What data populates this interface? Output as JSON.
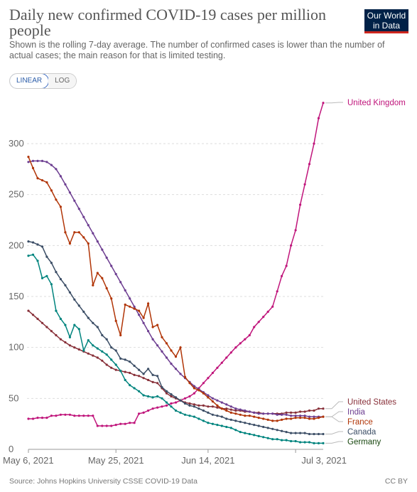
{
  "header": {
    "title": "Daily new confirmed COVID-19 cases per million people",
    "subtitle": "Shown is the rolling 7-day average. The number of confirmed cases is lower than the number of actual cases; the main reason for that is limited testing.",
    "logo_line1": "Our World",
    "logo_line2": "in Data"
  },
  "controls": {
    "linear_label": "LINEAR",
    "log_label": "LOG"
  },
  "footer": {
    "source": "Source: Johns Hopkins University CSSE COVID-19 Data",
    "license": "CC BY"
  },
  "chart_data": {
    "type": "line",
    "title": "Daily new confirmed COVID-19 cases per million people",
    "ylim": [
      0,
      340
    ],
    "yticks": [
      0,
      50,
      100,
      150,
      200,
      250,
      300
    ],
    "xticks": [
      "May 6, 2021",
      "May 25, 2021",
      "Jun 14, 2021",
      "Jul 3, 2021"
    ],
    "x_start": "May 6, 2021",
    "x_end": "Jul 3, 2021",
    "grid": "horizontal",
    "legend": "right, end of lines",
    "series": [
      {
        "name": "United Kingdom",
        "color": "#c0157b",
        "values": [
          30,
          30,
          31,
          31,
          31,
          33,
          33,
          34,
          34,
          34,
          33,
          33,
          33,
          33,
          33,
          23,
          23,
          23,
          23,
          24,
          25,
          25,
          26,
          26,
          35,
          36,
          38,
          40,
          41,
          42,
          43,
          45,
          46,
          48,
          50,
          52,
          55,
          60,
          65,
          70,
          75,
          80,
          85,
          90,
          95,
          100,
          104,
          108,
          112,
          120,
          125,
          130,
          135,
          140,
          155,
          170,
          180,
          200,
          215,
          240,
          260,
          280,
          300,
          325,
          340
        ]
      },
      {
        "name": "United States",
        "color": "#883039",
        "values": [
          136,
          132,
          128,
          124,
          120,
          116,
          112,
          108,
          105,
          102,
          100,
          98,
          96,
          94,
          92,
          90,
          87,
          83,
          80,
          78,
          77,
          76,
          75,
          73,
          72,
          70,
          68,
          66,
          65,
          60,
          55,
          52,
          50,
          48,
          46,
          45,
          44,
          43,
          43,
          42,
          42,
          41,
          40,
          40,
          39,
          38,
          38,
          37,
          37,
          36,
          36,
          35,
          35,
          35,
          35,
          35,
          36,
          36,
          36,
          37,
          37,
          38,
          38,
          40,
          40
        ]
      },
      {
        "name": "India",
        "color": "#6d3e91",
        "values": [
          282,
          283,
          283,
          283,
          282,
          279,
          275,
          268,
          260,
          252,
          244,
          236,
          228,
          220,
          212,
          204,
          196,
          188,
          180,
          172,
          164,
          156,
          148,
          140,
          132,
          124,
          116,
          108,
          102,
          96,
          90,
          84,
          79,
          74,
          70,
          66,
          62,
          59,
          56,
          53,
          50,
          48,
          46,
          44,
          42,
          40,
          39,
          38,
          37,
          36,
          35,
          35,
          35,
          35,
          34,
          34,
          34,
          33,
          33,
          33,
          33,
          32,
          32,
          32,
          32
        ]
      },
      {
        "name": "France",
        "color": "#b13507",
        "values": [
          287,
          276,
          266,
          264,
          262,
          254,
          245,
          238,
          213,
          202,
          213,
          213,
          208,
          202,
          161,
          173,
          168,
          158,
          148,
          126,
          112,
          142,
          140,
          138,
          136,
          129,
          143,
          120,
          122,
          110,
          104,
          97,
          91,
          100,
          71,
          65,
          60,
          58,
          55,
          51,
          47,
          43,
          40,
          38,
          36,
          35,
          34,
          33,
          33,
          32,
          31,
          30,
          29,
          28,
          28,
          29,
          30,
          30,
          31,
          31,
          31,
          30,
          30,
          31,
          32
        ]
      },
      {
        "name": "Canada",
        "color": "#3c4e66",
        "values": [
          204,
          203,
          201,
          199,
          189,
          183,
          174,
          167,
          161,
          154,
          147,
          141,
          135,
          129,
          124,
          120,
          112,
          108,
          100,
          97,
          89,
          88,
          86,
          82,
          78,
          74,
          79,
          73,
          72,
          61,
          57,
          54,
          51,
          48,
          45,
          43,
          42,
          40,
          38,
          36,
          34,
          33,
          32,
          30,
          29,
          28,
          27,
          26,
          25,
          24,
          23,
          22,
          21,
          20,
          19,
          18,
          17,
          16,
          16,
          16,
          16,
          15,
          15,
          15,
          15
        ]
      },
      {
        "name": "Germany",
        "color": "#18470f",
        "line_color": "#00847e",
        "values": [
          190,
          191,
          185,
          168,
          170,
          162,
          136,
          128,
          122,
          110,
          122,
          118,
          97,
          107,
          102,
          99,
          96,
          93,
          88,
          83,
          77,
          68,
          63,
          60,
          57,
          53,
          52,
          51,
          52,
          50,
          46,
          42,
          38,
          36,
          34,
          33,
          32,
          30,
          28,
          26,
          25,
          24,
          23,
          22,
          21,
          19,
          17,
          16,
          15,
          14,
          13,
          12,
          11,
          10,
          10,
          9,
          9,
          8,
          8,
          7,
          7,
          7,
          6,
          6,
          6
        ]
      }
    ]
  }
}
